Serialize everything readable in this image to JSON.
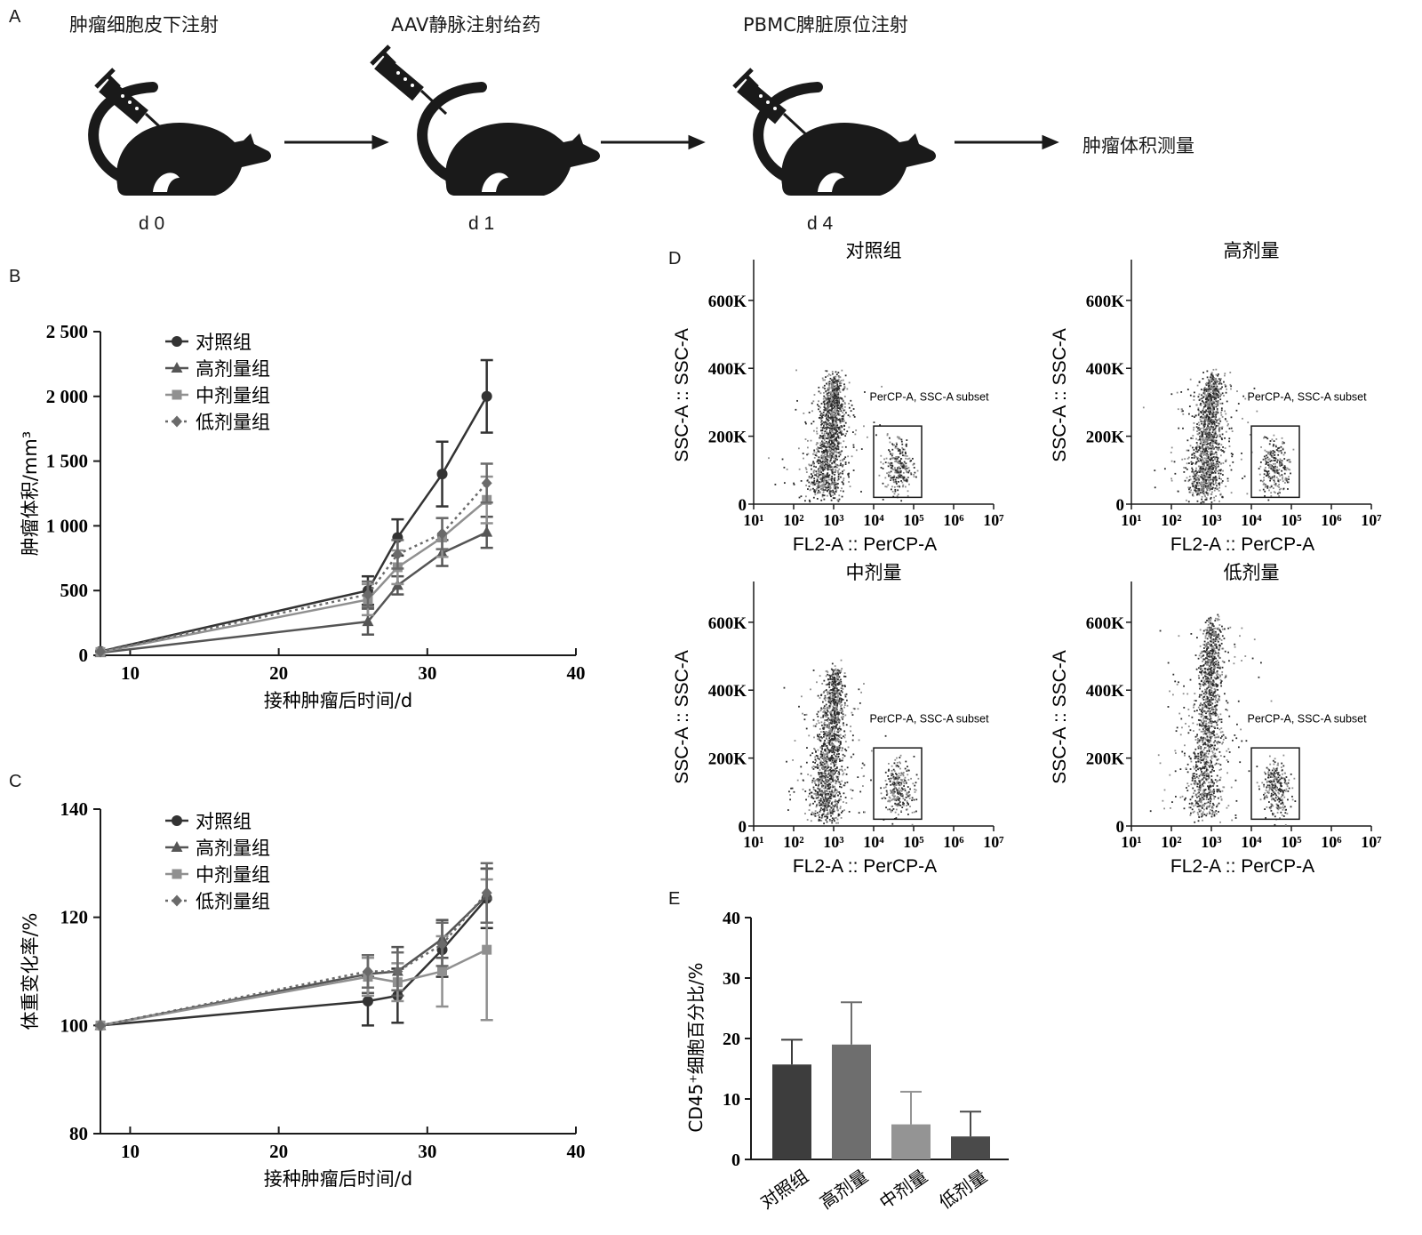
{
  "panels": {
    "a": "A",
    "b": "B",
    "c": "C",
    "d": "D",
    "e": "E"
  },
  "schedule": {
    "steps": [
      {
        "label": "肿瘤细胞皮下注射",
        "day": "d 0"
      },
      {
        "label": "AAV静脉注射给药",
        "day": "d 1"
      },
      {
        "label": "PBMC脾脏原位注射",
        "day": "d 4"
      }
    ],
    "final_step": "肿瘤体积测量"
  },
  "chart_data": [
    {
      "type": "line",
      "id": "tumor-volume",
      "xlabel": "接种肿瘤后时间/d",
      "ylabel": "肿瘤体积/mm³",
      "xlim": [
        8,
        40
      ],
      "ylim": [
        0,
        2500
      ],
      "xticks": [
        "10",
        "20",
        "30",
        "40"
      ],
      "xtick_values": [
        10,
        20,
        30,
        40
      ],
      "yticks": [
        "0",
        "500",
        "1 000",
        "1 500",
        "2 000",
        "2 500"
      ],
      "ytick_values": [
        0,
        500,
        1000,
        1500,
        2000,
        2500
      ],
      "legend_position": "top-left",
      "x": [
        8,
        26,
        28,
        31,
        34
      ],
      "series": [
        {
          "name": "对照组",
          "marker": "circle",
          "dash": "solid",
          "color": "#333333",
          "values": [
            30,
            500,
            910,
            1400,
            2000
          ],
          "errors": [
            0,
            110,
            140,
            250,
            280
          ]
        },
        {
          "name": "高剂量组",
          "marker": "triangle",
          "dash": "solid",
          "color": "#555555",
          "values": [
            20,
            260,
            540,
            790,
            950
          ],
          "errors": [
            0,
            100,
            70,
            100,
            120
          ]
        },
        {
          "name": "中剂量组",
          "marker": "square",
          "dash": "solid",
          "color": "#909090",
          "values": [
            25,
            430,
            680,
            910,
            1200
          ],
          "errors": [
            0,
            120,
            130,
            150,
            180
          ]
        },
        {
          "name": "低剂量组",
          "marker": "diamond",
          "dash": "dotted",
          "color": "#6a6a6a",
          "values": [
            28,
            470,
            780,
            940,
            1330
          ],
          "errors": [
            0,
            100,
            110,
            120,
            150
          ]
        }
      ]
    },
    {
      "type": "line",
      "id": "body-weight",
      "xlabel": "接种肿瘤后时间/d",
      "ylabel": "体重变化率/%",
      "xlim": [
        8,
        40
      ],
      "ylim": [
        80,
        140
      ],
      "xticks": [
        "10",
        "20",
        "30",
        "40"
      ],
      "xtick_values": [
        10,
        20,
        30,
        40
      ],
      "yticks": [
        "80",
        "100",
        "120",
        "140"
      ],
      "ytick_values": [
        80,
        100,
        120,
        140
      ],
      "legend_position": "top-left",
      "x": [
        8,
        26,
        28,
        31,
        34
      ],
      "series": [
        {
          "name": "对照组",
          "marker": "circle",
          "dash": "solid",
          "color": "#333333",
          "values": [
            100,
            104.5,
            105.5,
            114,
            123.5
          ],
          "errors": [
            0,
            4.5,
            5,
            5,
            5.5
          ]
        },
        {
          "name": "高剂量组",
          "marker": "triangle",
          "dash": "solid",
          "color": "#555555",
          "values": [
            100,
            109.5,
            110,
            116,
            124
          ],
          "errors": [
            0,
            3.5,
            4.5,
            3.5,
            5
          ]
        },
        {
          "name": "中剂量组",
          "marker": "square",
          "dash": "solid",
          "color": "#909090",
          "values": [
            100,
            109,
            108,
            110,
            114
          ],
          "errors": [
            0,
            3.5,
            3.5,
            6.5,
            13
          ]
        },
        {
          "name": "低剂量组",
          "marker": "diamond",
          "dash": "dotted",
          "color": "#6a6a6a",
          "values": [
            100,
            110,
            110,
            115,
            124.5
          ],
          "errors": [
            0,
            3,
            3.5,
            4,
            5.5
          ]
        }
      ]
    },
    {
      "type": "scatter",
      "id": "flow-cytometry",
      "plots": [
        {
          "title": "对照组",
          "subset_label": "PerCP-A, SSC-A subset",
          "pop_top_k": 370
        },
        {
          "title": "高剂量",
          "subset_label": "PerCP-A, SSC-A subset",
          "pop_top_k": 370
        },
        {
          "title": "中剂量",
          "subset_label": "PerCP-A, SSC-A subset",
          "pop_top_k": 450
        },
        {
          "title": "低剂量",
          "subset_label": "PerCP-A, SSC-A subset",
          "pop_top_k": 600
        }
      ],
      "xlabel": "FL2-A :: PerCP-A",
      "ylabel": "SSC-A :: SSC-A",
      "xscale": "log",
      "xlim": [
        1,
        7
      ],
      "xticks": [
        "10¹",
        "10²",
        "10³",
        "10⁴",
        "10⁵",
        "10⁶",
        "10⁷"
      ],
      "xtick_values": [
        1,
        2,
        3,
        4,
        5,
        6,
        7
      ],
      "ylim": [
        0,
        720
      ],
      "yticks": [
        "0",
        "200K",
        "400K",
        "600K"
      ],
      "ytick_values": [
        0,
        200,
        400,
        600
      ],
      "gate_x": [
        4,
        5.2
      ],
      "gate_y": [
        20,
        230
      ]
    },
    {
      "type": "bar",
      "id": "cd45",
      "ylabel": "CD45⁺细胞百分比/%",
      "ylim": [
        0,
        40
      ],
      "yticks": [
        "0",
        "10",
        "20",
        "30",
        "40"
      ],
      "ytick_values": [
        0,
        10,
        20,
        30,
        40
      ],
      "categories": [
        "对照组",
        "高剂量",
        "中剂量",
        "低剂量"
      ],
      "values": [
        15.7,
        19,
        5.8,
        3.8
      ],
      "errors": [
        4.1,
        7,
        5.4,
        4.1
      ],
      "colors": [
        "#3d3d3d",
        "#6e6e6e",
        "#949494",
        "#4a4a4a"
      ]
    }
  ]
}
